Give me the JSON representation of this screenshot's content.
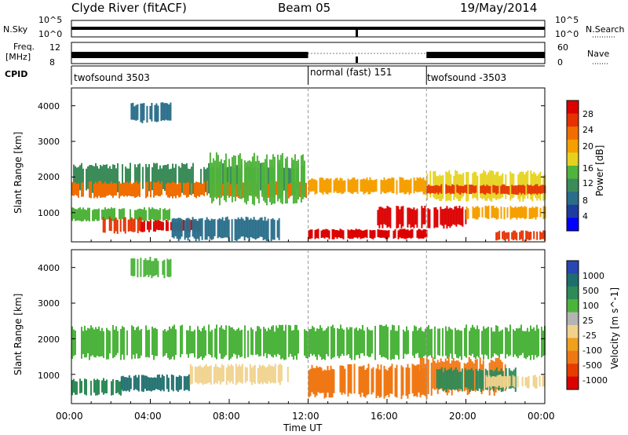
{
  "header": {
    "station": "Clyde River (fitACF)",
    "beam": "Beam 05",
    "date": "19/May/2014"
  },
  "top_panels": {
    "nsky_label": "N.Sky",
    "nsearch_label": "N.Search",
    "noise_ticks": [
      "10^5",
      "10^0"
    ],
    "freq_label": "Freq.",
    "freq_unit": "[MHz]",
    "freq_ticks": [
      "12",
      "8"
    ],
    "nave_label": "Nave",
    "nave_ticks": [
      "60",
      "0"
    ],
    "cpid_label": "CPID",
    "cpid_segments": [
      {
        "label": "twofsound 3503",
        "start_hour": 0.0,
        "end_hour": 12.0
      },
      {
        "label": "normal (fast) 151",
        "start_hour": 12.0,
        "end_hour": 18.0
      },
      {
        "label": "twofsound -3503",
        "start_hour": 18.0,
        "end_hour": 24.0
      }
    ]
  },
  "colors": {
    "power_scale": [
      "#0000ff",
      "#1e3ca0",
      "#2a6e8a",
      "#3c8c5a",
      "#50b43c",
      "#e6d21e",
      "#f5a000",
      "#f06e00",
      "#e63200",
      "#dc0000"
    ],
    "velocity_scale": [
      "#2846b4",
      "#1e6e6e",
      "#2e8b57",
      "#4cb43c",
      "#b4b4b4",
      "#f0d28c",
      "#f0a01e",
      "#f07814",
      "#e63c00",
      "#dc0000"
    ]
  },
  "chart_data": [
    {
      "type": "heatmap",
      "title": "Power",
      "xlabel": "Time UT",
      "ylabel": "Slant Range [km]",
      "xlim_hours": [
        0,
        24
      ],
      "ylim": [
        180,
        4500
      ],
      "x_ticks": [
        "00:00",
        "04:00",
        "08:00",
        "12:00",
        "16:00",
        "20:00",
        "00:00"
      ],
      "y_ticks": [
        1000,
        2000,
        3000,
        4000
      ],
      "colorbar_label": "Power [dB]",
      "colorbar_ticks": [
        28,
        24,
        20,
        16,
        12,
        8,
        4
      ],
      "colorbar_range": [
        0,
        30
      ],
      "regions": [
        {
          "t0": 0.0,
          "t1": 12.0,
          "r0": 1500,
          "r1": 2400,
          "level": 10
        },
        {
          "t0": 0.0,
          "t1": 12.0,
          "r0": 1400,
          "r1": 1900,
          "level": 22
        },
        {
          "t0": 0.0,
          "t1": 5.0,
          "r0": 750,
          "r1": 1150,
          "level": 14
        },
        {
          "t0": 1.5,
          "t1": 3.5,
          "r0": 400,
          "r1": 900,
          "level": 24
        },
        {
          "t0": 3.5,
          "t1": 6.5,
          "r0": 450,
          "r1": 800,
          "level": 28
        },
        {
          "t0": 5.0,
          "t1": 10.5,
          "r0": 200,
          "r1": 900,
          "level": 6
        },
        {
          "t0": 7.0,
          "t1": 12.0,
          "r0": 1200,
          "r1": 2700,
          "level": 12
        },
        {
          "t0": 3.0,
          "t1": 5.0,
          "r0": 3500,
          "r1": 4100,
          "level": 8
        },
        {
          "t0": 12.0,
          "t1": 18.0,
          "r0": 1500,
          "r1": 2000,
          "level": 18
        },
        {
          "t0": 12.0,
          "t1": 18.0,
          "r0": 250,
          "r1": 550,
          "level": 30
        },
        {
          "t0": 15.5,
          "t1": 20.0,
          "r0": 550,
          "r1": 1200,
          "level": 29
        },
        {
          "t0": 18.0,
          "t1": 24.0,
          "r0": 1300,
          "r1": 2200,
          "level": 16
        },
        {
          "t0": 18.0,
          "t1": 24.0,
          "r0": 1500,
          "r1": 1800,
          "level": 24
        },
        {
          "t0": 20.0,
          "t1": 24.0,
          "r0": 800,
          "r1": 1200,
          "level": 20
        },
        {
          "t0": 21.5,
          "t1": 24.0,
          "r0": 200,
          "r1": 500,
          "level": 26
        }
      ]
    },
    {
      "type": "heatmap",
      "title": "Velocity",
      "xlabel": "Time UT",
      "ylabel": "Slant Range [km]",
      "xlim_hours": [
        0,
        24
      ],
      "ylim": [
        180,
        4500
      ],
      "x_ticks": [
        "00:00",
        "04:00",
        "08:00",
        "12:00",
        "16:00",
        "20:00",
        "00:00"
      ],
      "y_ticks": [
        1000,
        2000,
        3000,
        4000
      ],
      "colorbar_label": "Velocity [m s^-1]",
      "colorbar_ticks": [
        "1000",
        "500",
        "100",
        "25",
        "-25",
        "-100",
        "-500",
        "-1000"
      ],
      "regions": [
        {
          "t0": 0.0,
          "t1": 24.0,
          "r0": 1400,
          "r1": 2400,
          "level": "25"
        },
        {
          "t0": 0.0,
          "t1": 2.5,
          "r0": 400,
          "r1": 900,
          "level": "100"
        },
        {
          "t0": 2.5,
          "t1": 6.0,
          "r0": 500,
          "r1": 1000,
          "level": "500"
        },
        {
          "t0": 6.0,
          "t1": 11.0,
          "r0": 700,
          "r1": 1300,
          "level": "-100"
        },
        {
          "t0": 3.0,
          "t1": 5.0,
          "r0": 3700,
          "r1": 4300,
          "level": "25"
        },
        {
          "t0": 12.0,
          "t1": 18.0,
          "r0": 300,
          "r1": 1300,
          "level": "-500"
        },
        {
          "t0": 17.5,
          "t1": 22.0,
          "r0": 400,
          "r1": 1500,
          "level": "-500"
        },
        {
          "t0": 18.5,
          "t1": 22.5,
          "r0": 500,
          "r1": 1200,
          "level": "100"
        },
        {
          "t0": 21.0,
          "t1": 24.0,
          "r0": 600,
          "r1": 1000,
          "level": "-100"
        }
      ]
    }
  ]
}
